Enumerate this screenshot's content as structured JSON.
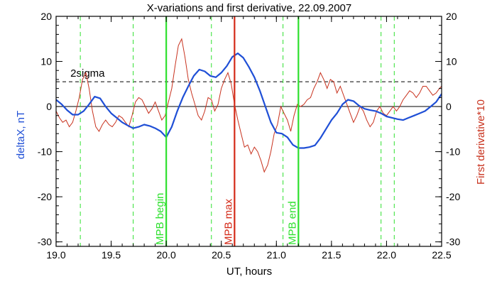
{
  "chart_data": {
    "type": "line",
    "title": "X-variations and first derivative, 22.09.2007",
    "xlabel": "UT, hours",
    "ylabel_left": "deltaX, nT",
    "ylabel_right": "First derivative*10",
    "xlim": [
      19.0,
      22.5
    ],
    "ylim": [
      -31,
      20
    ],
    "x_ticks": [
      19.0,
      19.5,
      20.0,
      20.5,
      21.0,
      21.5,
      22.0,
      22.5
    ],
    "x_tick_labels": [
      "19.0",
      "19.5",
      "20.0",
      "20.5",
      "21.0",
      "21.5",
      "22.0",
      "22.5"
    ],
    "y_ticks": [
      20,
      10,
      0,
      -10,
      -20,
      -30
    ],
    "y_tick_labels": [
      "20",
      "10",
      "0",
      "-10",
      "-20",
      "-30"
    ],
    "colors": {
      "deltaX": "#1f4fd6",
      "derivative": "#c8321e",
      "mpb_boundary": "#2ee02e",
      "mpb_max": "#d42a18",
      "sigma": "#000000",
      "zero": "#000000"
    },
    "sigma_level": 5.5,
    "sigma_label": "2sigma",
    "dashed_green_x": [
      19.22,
      19.7,
      20.41,
      21.06,
      21.95,
      22.07
    ],
    "markers": [
      {
        "x": 20.0,
        "label": "MPB begin",
        "role": "mpb_boundary"
      },
      {
        "x": 20.62,
        "label": "MPB max",
        "role": "mpb_max"
      },
      {
        "x": 21.2,
        "label": "MPB end",
        "role": "mpb_boundary"
      }
    ],
    "series": [
      {
        "key": "deltaX",
        "axis": "left",
        "x": [
          19.0,
          19.05,
          19.1,
          19.15,
          19.2,
          19.25,
          19.3,
          19.35,
          19.4,
          19.45,
          19.5,
          19.55,
          19.6,
          19.65,
          19.7,
          19.75,
          19.8,
          19.85,
          19.9,
          19.95,
          20.0,
          20.05,
          20.1,
          20.15,
          20.2,
          20.25,
          20.3,
          20.35,
          20.4,
          20.45,
          20.5,
          20.55,
          20.6,
          20.65,
          20.7,
          20.75,
          20.8,
          20.85,
          20.9,
          20.95,
          21.0,
          21.05,
          21.1,
          21.15,
          21.2,
          21.25,
          21.3,
          21.35,
          21.4,
          21.45,
          21.5,
          21.55,
          21.6,
          21.65,
          21.7,
          21.75,
          21.8,
          21.85,
          21.9,
          21.95,
          22.0,
          22.05,
          22.1,
          22.15,
          22.2,
          22.25,
          22.3,
          22.35,
          22.4,
          22.45,
          22.5
        ],
        "y": [
          1.5,
          0.5,
          -0.8,
          -1.8,
          -1.8,
          -1.0,
          0.5,
          2.2,
          1.8,
          0.0,
          -1.5,
          -2.5,
          -3.5,
          -4.2,
          -4.8,
          -4.5,
          -4.0,
          -4.3,
          -4.8,
          -5.5,
          -6.8,
          -4.5,
          -1.0,
          2.0,
          4.5,
          6.8,
          8.2,
          7.8,
          6.8,
          6.5,
          7.5,
          9.0,
          11.0,
          11.8,
          10.8,
          8.8,
          6.5,
          3.5,
          0.0,
          -3.5,
          -5.8,
          -6.0,
          -6.8,
          -8.5,
          -9.2,
          -9.2,
          -9.0,
          -8.6,
          -7.0,
          -5.0,
          -3.0,
          -1.5,
          0.5,
          1.5,
          1.2,
          0.2,
          -0.5,
          -0.8,
          -1.0,
          -1.5,
          -2.2,
          -2.5,
          -2.8,
          -3.0,
          -2.5,
          -2.0,
          -1.5,
          -1.0,
          0.0,
          1.0,
          2.8
        ]
      },
      {
        "key": "derivative",
        "axis": "right",
        "x": [
          19.0,
          19.03,
          19.06,
          19.09,
          19.12,
          19.15,
          19.18,
          19.21,
          19.24,
          19.27,
          19.3,
          19.33,
          19.36,
          19.39,
          19.42,
          19.45,
          19.48,
          19.51,
          19.54,
          19.57,
          19.6,
          19.63,
          19.66,
          19.69,
          19.72,
          19.75,
          19.78,
          19.81,
          19.84,
          19.87,
          19.9,
          19.93,
          19.96,
          19.99,
          20.02,
          20.05,
          20.08,
          20.11,
          20.14,
          20.17,
          20.2,
          20.23,
          20.26,
          20.29,
          20.32,
          20.35,
          20.38,
          20.41,
          20.44,
          20.47,
          20.5,
          20.53,
          20.56,
          20.59,
          20.62,
          20.65,
          20.68,
          20.71,
          20.74,
          20.77,
          20.8,
          20.83,
          20.86,
          20.89,
          20.92,
          20.95,
          20.98,
          21.01,
          21.04,
          21.07,
          21.1,
          21.13,
          21.16,
          21.19,
          21.22,
          21.25,
          21.28,
          21.31,
          21.34,
          21.37,
          21.4,
          21.43,
          21.46,
          21.49,
          21.52,
          21.55,
          21.58,
          21.61,
          21.64,
          21.67,
          21.7,
          21.73,
          21.76,
          21.79,
          21.82,
          21.85,
          21.88,
          21.91,
          21.94,
          21.97,
          22.0,
          22.03,
          22.06,
          22.09,
          22.12,
          22.15,
          22.18,
          22.21,
          22.24,
          22.27,
          22.3,
          22.33,
          22.36,
          22.39,
          22.42,
          22.45,
          22.48,
          22.5
        ],
        "y": [
          -1.0,
          -2.5,
          -3.5,
          -3.0,
          -4.5,
          -3.5,
          -1.0,
          2.0,
          6.0,
          7.5,
          4.0,
          -1.0,
          -4.5,
          -5.5,
          -4.0,
          -3.0,
          -4.0,
          -4.5,
          -3.5,
          -2.0,
          -2.5,
          -3.5,
          -4.5,
          -2.0,
          1.0,
          2.0,
          1.5,
          0.0,
          -1.5,
          -0.5,
          1.0,
          -1.0,
          -3.0,
          -2.0,
          1.0,
          4.0,
          9.0,
          13.5,
          15.0,
          11.0,
          6.0,
          3.0,
          0.5,
          -2.0,
          -3.0,
          -1.0,
          2.0,
          1.5,
          -1.0,
          0.5,
          4.0,
          6.0,
          7.5,
          5.0,
          0.5,
          -3.0,
          -6.0,
          -9.0,
          -8.5,
          -10.5,
          -9.0,
          -10.0,
          -12.0,
          -14.5,
          -13.0,
          -10.0,
          -6.0,
          -4.0,
          0.0,
          -1.5,
          -3.0,
          -5.5,
          -2.0,
          0.5,
          0.0,
          0.5,
          1.5,
          2.0,
          4.0,
          5.5,
          7.5,
          6.0,
          4.0,
          6.0,
          5.5,
          3.0,
          4.5,
          2.5,
          0.5,
          -1.5,
          -3.5,
          -2.0,
          0.0,
          -1.0,
          -3.0,
          -4.5,
          -3.5,
          -1.0,
          0.0,
          -1.5,
          -2.0,
          -1.0,
          0.0,
          -1.0,
          0.0,
          1.5,
          2.5,
          3.5,
          3.0,
          2.0,
          3.0,
          4.5,
          4.5,
          3.5,
          2.5,
          3.0,
          4.0,
          4.5
        ]
      }
    ]
  }
}
